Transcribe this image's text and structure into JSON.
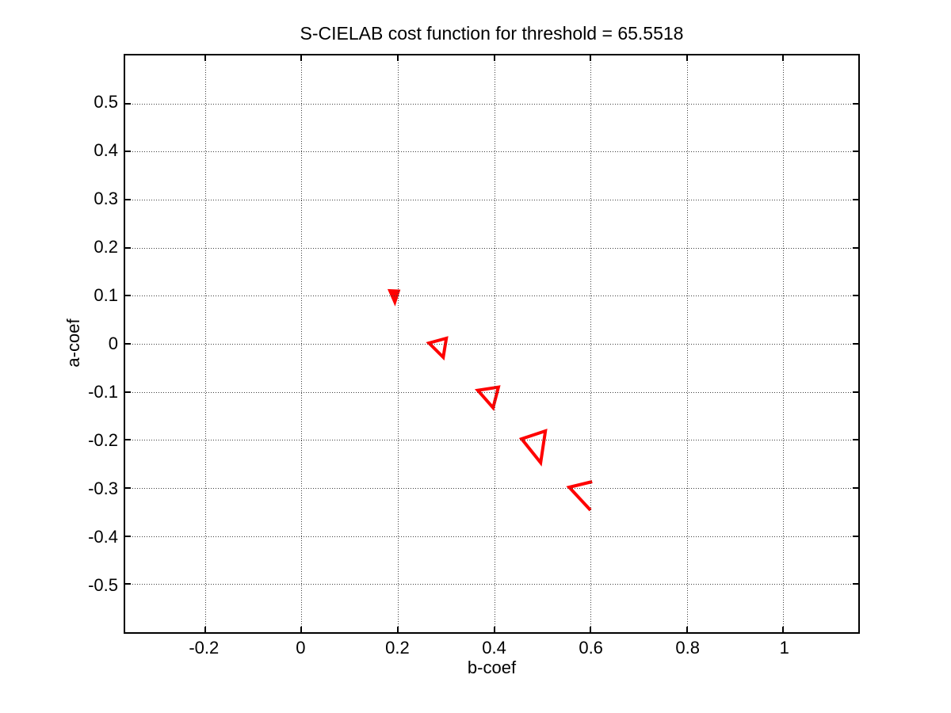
{
  "chart": {
    "title": "S-CIELAB cost function for threshold = 65.5518",
    "xlabel": "b-coef",
    "ylabel": "a-coef"
  },
  "chart_data": {
    "type": "line",
    "subtype": "contour-loops",
    "title": "S-CIELAB cost function for threshold = 65.5518",
    "threshold_value": 65.5518,
    "xlabel": "b-coef",
    "ylabel": "a-coef",
    "xlim": [
      -0.366,
      1.156
    ],
    "ylim": [
      -0.6,
      0.6
    ],
    "grid": true,
    "grid_style": "dotted",
    "legend": null,
    "axes_box": true,
    "tick_direction": "in",
    "colors": {
      "line": "#ff0000",
      "axis": "#000000",
      "grid_dot": "#3d3d3d",
      "background": "#ffffff",
      "text": "#000000"
    },
    "xtick_labels": [
      "-0.2",
      "0",
      "0.2",
      "0.4",
      "0.6",
      "0.8",
      "1"
    ],
    "xtick_values": [
      -0.2,
      0,
      0.2,
      0.4,
      0.6,
      0.8,
      1
    ],
    "ytick_labels": [
      "0.5",
      "0.4",
      "0.3",
      "0.2",
      "0.1",
      "0",
      "-0.1",
      "-0.2",
      "-0.3",
      "-0.4",
      "-0.5"
    ],
    "ytick_values": [
      0.5,
      0.4,
      0.3,
      0.2,
      0.1,
      0,
      -0.1,
      -0.2,
      -0.3,
      -0.4,
      -0.5
    ],
    "line_width": 4,
    "series": [
      {
        "name": "contour-loop-1",
        "closed": true,
        "filled": true,
        "x": [
          0.1834,
          0.203,
          0.1948
        ],
        "y": [
          0.1107,
          0.1098,
          0.0844
        ]
      },
      {
        "name": "contour-loop-2",
        "closed": true,
        "filled": false,
        "x": [
          0.3012,
          0.2652,
          0.2947
        ],
        "y": [
          0.0115,
          0.0016,
          -0.0279
        ]
      },
      {
        "name": "contour-loop-3",
        "closed": true,
        "filled": false,
        "x": [
          0.4088,
          0.3662,
          0.3978
        ],
        "y": [
          -0.0897,
          -0.0962,
          -0.1323
        ]
      },
      {
        "name": "contour-loop-4",
        "closed": true,
        "filled": false,
        "x": [
          0.5059,
          0.4568,
          0.4961
        ],
        "y": [
          -0.1803,
          -0.1967,
          -0.2459
        ]
      },
      {
        "name": "contour-arc-5",
        "closed": false,
        "filled": false,
        "x": [
          0.6025,
          0.555,
          0.5992
        ],
        "y": [
          -0.2852,
          -0.2967,
          -0.3443
        ]
      }
    ]
  }
}
